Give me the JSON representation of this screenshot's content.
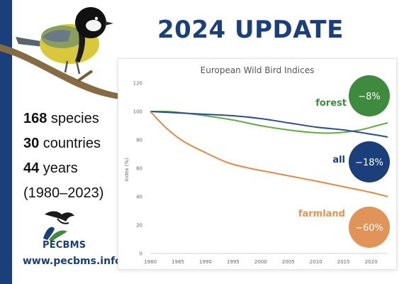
{
  "header": {
    "title": "2024 UPDATE"
  },
  "stats": [
    {
      "value": "168",
      "label": " species"
    },
    {
      "value": "30",
      "label": " countries"
    },
    {
      "value": "44",
      "label": " years"
    },
    {
      "value": "",
      "label": "(1980–2023)"
    }
  ],
  "branding": {
    "logo_text": "PECBMS",
    "url": "www.pecbms.info"
  },
  "colors": {
    "navy": "#1b3f7a",
    "forest": "#3e8a3e",
    "farmland": "#e09458",
    "all": "#1b3f7a"
  },
  "chart_data": {
    "type": "line",
    "title": "European Wild Bird Indices",
    "ylabel": "Index (%)",
    "xlabel": "",
    "xlim": [
      1980,
      2023
    ],
    "ylim": [
      0,
      120
    ],
    "x_ticks": [
      1980,
      1985,
      1990,
      1995,
      2000,
      2005,
      2010,
      2015,
      2020
    ],
    "y_ticks": [
      0,
      20,
      40,
      60,
      80,
      100,
      120
    ],
    "grid": false,
    "series": [
      {
        "name": "forest",
        "color": "#62ab45",
        "change": "−8%",
        "points": [
          [
            1980,
            100
          ],
          [
            1983,
            100
          ],
          [
            1986,
            99
          ],
          [
            1990,
            97
          ],
          [
            1995,
            94
          ],
          [
            2000,
            90
          ],
          [
            2005,
            87
          ],
          [
            2010,
            85
          ],
          [
            2014,
            85
          ],
          [
            2018,
            87
          ],
          [
            2021,
            90
          ],
          [
            2023,
            92
          ]
        ]
      },
      {
        "name": "all",
        "color": "#2b4e8c",
        "change": "−18%",
        "points": [
          [
            1980,
            100
          ],
          [
            1985,
            99
          ],
          [
            1990,
            98
          ],
          [
            1995,
            97
          ],
          [
            2000,
            95
          ],
          [
            2005,
            92
          ],
          [
            2010,
            89
          ],
          [
            2015,
            87
          ],
          [
            2020,
            84
          ],
          [
            2023,
            82
          ]
        ]
      },
      {
        "name": "farmland",
        "color": "#e38b45",
        "change": "−60%",
        "points": [
          [
            1980,
            100
          ],
          [
            1983,
            88
          ],
          [
            1986,
            79
          ],
          [
            1990,
            71
          ],
          [
            1994,
            64
          ],
          [
            1998,
            60
          ],
          [
            2002,
            57
          ],
          [
            2006,
            54
          ],
          [
            2010,
            51
          ],
          [
            2015,
            47
          ],
          [
            2020,
            43
          ],
          [
            2023,
            40
          ]
        ]
      }
    ]
  }
}
